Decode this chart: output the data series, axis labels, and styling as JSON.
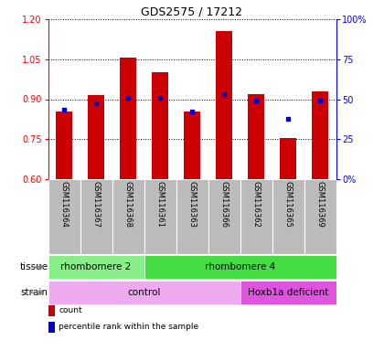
{
  "title": "GDS2575 / 17212",
  "samples": [
    "GSM116364",
    "GSM116367",
    "GSM116368",
    "GSM116361",
    "GSM116363",
    "GSM116366",
    "GSM116362",
    "GSM116365",
    "GSM116369"
  ],
  "count_values": [
    0.855,
    0.915,
    1.055,
    1.0,
    0.855,
    1.155,
    0.92,
    0.755,
    0.93
  ],
  "percentile_values": [
    0.86,
    0.885,
    0.905,
    0.905,
    0.855,
    0.92,
    0.895,
    0.825,
    0.895
  ],
  "ylim_left": [
    0.6,
    1.2
  ],
  "ylim_right": [
    0,
    100
  ],
  "yticks_left": [
    0.6,
    0.75,
    0.9,
    1.05,
    1.2
  ],
  "yticks_right": [
    0,
    25,
    50,
    75,
    100
  ],
  "ytick_labels_right": [
    "0%",
    "25",
    "50",
    "75",
    "100%"
  ],
  "bar_color": "#cc0000",
  "dot_color": "#0000cc",
  "tissue_groups": [
    {
      "label": "rhombomere 2",
      "start": 0,
      "end": 3,
      "color": "#88ee88"
    },
    {
      "label": "rhombomere 4",
      "start": 3,
      "end": 9,
      "color": "#44dd44"
    }
  ],
  "strain_groups": [
    {
      "label": "control",
      "start": 0,
      "end": 6,
      "color": "#eeaaee"
    },
    {
      "label": "Hoxb1a deficient",
      "start": 6,
      "end": 9,
      "color": "#dd55dd"
    }
  ],
  "legend_items": [
    {
      "color": "#cc0000",
      "label": "count"
    },
    {
      "color": "#0000cc",
      "label": "percentile rank within the sample"
    }
  ],
  "background_color": "#ffffff",
  "tick_area_color": "#bbbbbb"
}
